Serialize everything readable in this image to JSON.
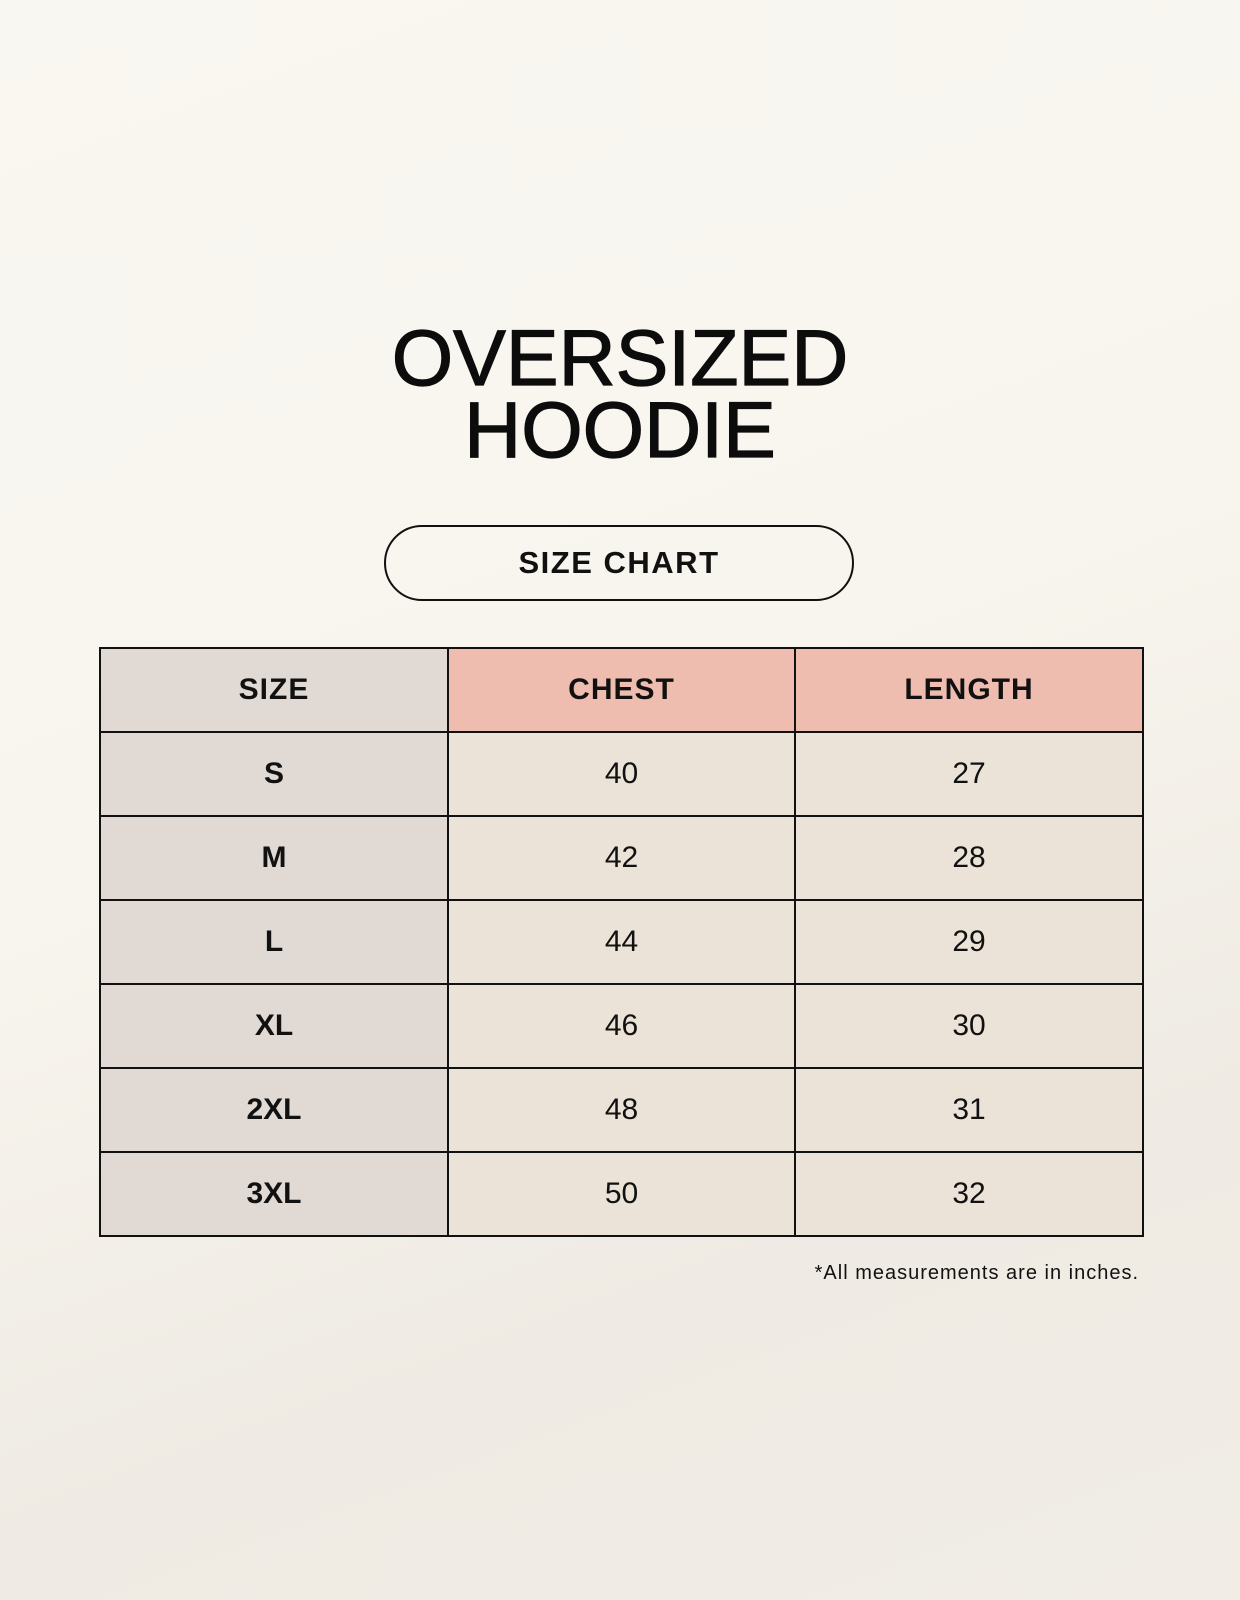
{
  "title": {
    "line1": "OVERSIZED",
    "line2": "HOODIE"
  },
  "subtitle": "SIZE CHART",
  "table": {
    "headers": [
      "SIZE",
      "CHEST",
      "LENGTH"
    ],
    "rows": [
      [
        "S",
        "40",
        "27"
      ],
      [
        "M",
        "42",
        "28"
      ],
      [
        "L",
        "44",
        "29"
      ],
      [
        "XL",
        "46",
        "30"
      ],
      [
        "2XL",
        "48",
        "31"
      ],
      [
        "3XL",
        "50",
        "32"
      ]
    ]
  },
  "footnote": "*All measurements are in inches.",
  "colors": {
    "size_column": "#e1d9d3",
    "header_accent": "#eebdaf",
    "cell": "#ebe2d8",
    "background": "#f8f5ee"
  }
}
